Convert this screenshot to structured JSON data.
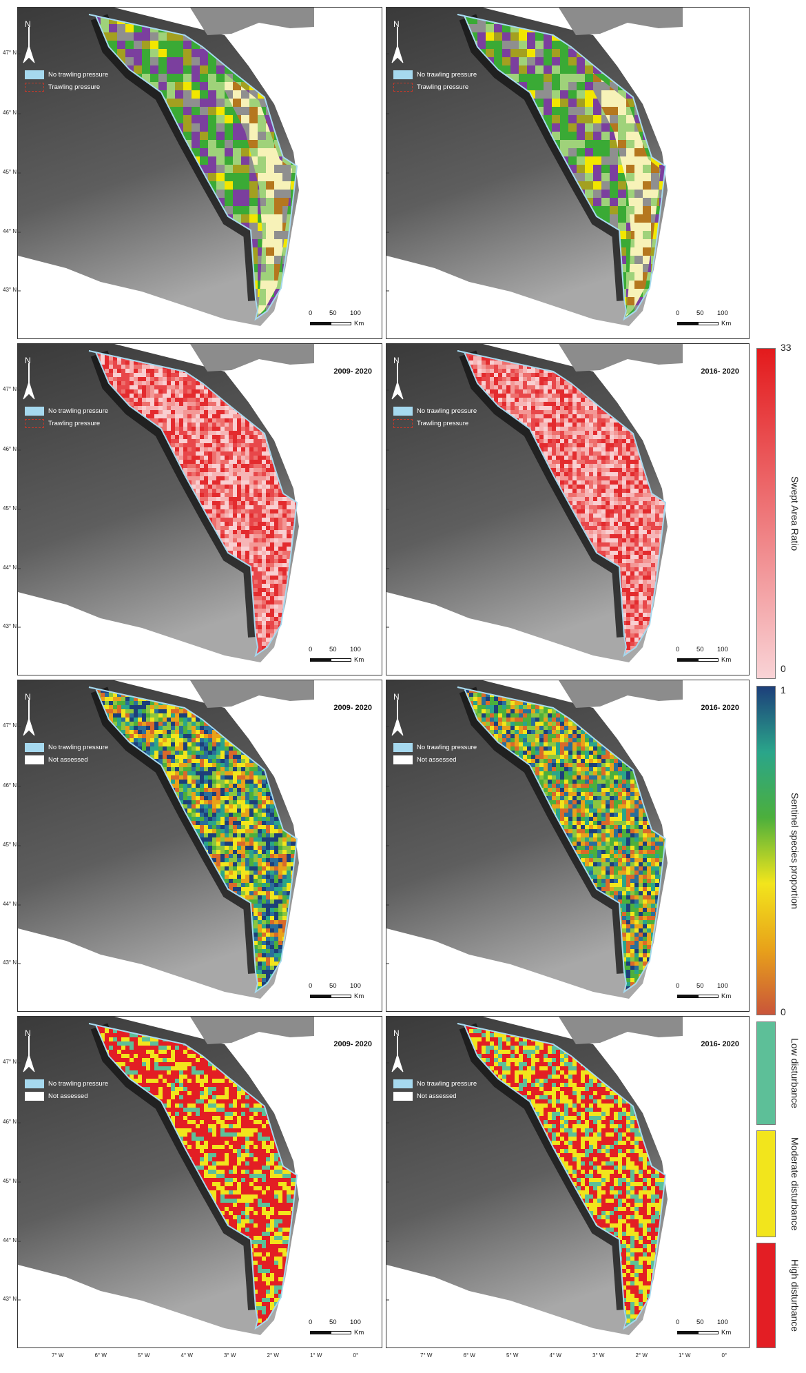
{
  "rows": [
    {
      "legend": [
        {
          "label": "No trawling pressure",
          "swatch": "#a6d9ef"
        },
        {
          "label": "Trawling pressure",
          "swatch": "outline-red"
        }
      ],
      "fill": "habitat",
      "periods": [
        "",
        ""
      ]
    },
    {
      "legend": [
        {
          "label": "No trawling pressure",
          "swatch": "#a6d9ef"
        },
        {
          "label": "Trawling pressure",
          "swatch": "outline-red"
        }
      ],
      "fill": "swept",
      "periods": [
        "2009- 2020",
        "2016- 2020"
      ]
    },
    {
      "legend": [
        {
          "label": "No trawling pressure",
          "swatch": "#a6d9ef"
        },
        {
          "label": "Not assessed",
          "swatch": "#ffffff"
        }
      ],
      "fill": "sentinel",
      "periods": [
        "2009- 2020",
        "2016- 2020"
      ]
    },
    {
      "legend": [
        {
          "label": "No trawling pressure",
          "swatch": "#a6d9ef"
        },
        {
          "label": "Not assessed",
          "swatch": "#ffffff"
        }
      ],
      "fill": "disturbance",
      "periods": [
        "2009- 2020",
        "2016- 2020"
      ]
    }
  ],
  "north_label": "N",
  "scale_bar": {
    "ticks": [
      "0",
      "50",
      "100"
    ],
    "unit": "Km"
  },
  "lat_labels": [
    "47° N",
    "46° N",
    "45° N",
    "44° N",
    "43° N"
  ],
  "lon_labels": [
    "7° W",
    "6° W",
    "5° W",
    "4° W",
    "3° W",
    "2° W",
    "1° W",
    "0°"
  ],
  "colorbars": {
    "swept": {
      "title": "Swept Area Ratio",
      "max": "33",
      "min": "0",
      "colors": [
        "#e31a1c",
        "#f9d3d6"
      ]
    },
    "sentinel": {
      "title": "Sentinel species proportion",
      "max": "1",
      "min": "0",
      "colors": [
        "#1d3f7a",
        "#2aa58a",
        "#4caf3c",
        "#f2e51c",
        "#e8a21a",
        "#c9553a"
      ]
    },
    "disturbance": [
      {
        "label": "Low disturbance",
        "color": "#5dbf98"
      },
      {
        "label": "Moderate disturbance",
        "color": "#f2e51c"
      },
      {
        "label": "High disturbance",
        "color": "#e31e24"
      }
    ]
  },
  "palettes": {
    "habitat": [
      "#3aaa35",
      "#3aaa35",
      "#3aaa35",
      "#7b3f9e",
      "#7b3f9e",
      "#a3a020",
      "#9fd27a",
      "#f2e600",
      "#8f8f8f"
    ],
    "habitat_coast": [
      "#f7f2b8",
      "#f7f2b8",
      "#9fd27a",
      "#b5771e",
      "#8f8f8f"
    ],
    "swept": [
      "#e8474a",
      "#ee6f6d",
      "#f39896",
      "#f6b5b6",
      "#e32b2e",
      "#f9cfd1"
    ],
    "sentinel": [
      "#1d3f7a",
      "#2a6f9a",
      "#2aa58a",
      "#4caf3c",
      "#8cc63f",
      "#f2e51c",
      "#e8a21a",
      "#d96a2a"
    ],
    "disturbance": [
      "#e31e24",
      "#e31e24",
      "#e31e24",
      "#f2e51c",
      "#f2e51c",
      "#5dbf98"
    ]
  }
}
